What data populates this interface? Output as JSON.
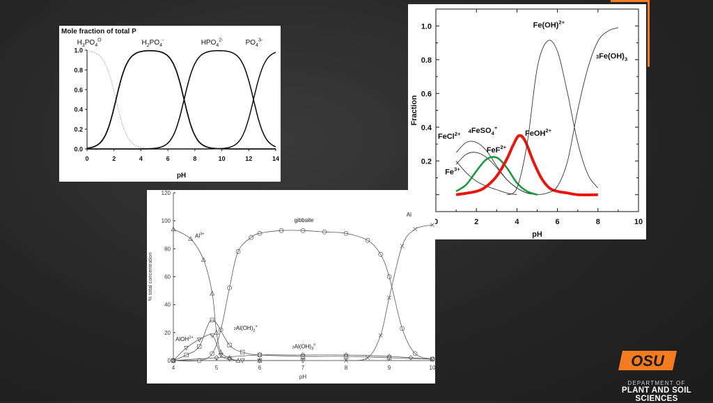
{
  "brand": {
    "accent_color": "#f47b20",
    "logo_text": "OSU",
    "department_line1": "DEPARTMENT OF",
    "department_line2": "PLANT AND SOIL SCIENCES"
  },
  "chart_data": [
    {
      "type": "line",
      "title": "Mole fraction of total P",
      "xlabel": "pH",
      "ylabel": "",
      "xlim": [
        0,
        14
      ],
      "ylim": [
        0,
        1
      ],
      "x_ticks": [
        "0",
        "2",
        "4",
        "6",
        "8",
        "10",
        "12",
        "14"
      ],
      "y_ticks": [
        "0.0",
        "0.2",
        "0.4",
        "0.6",
        "0.8",
        "1.0"
      ],
      "species_labels": [
        {
          "base": "H",
          "sub": "3",
          "mid": "PO",
          "sub2": "4",
          "sup": "O"
        },
        {
          "base": "H",
          "sub": "2",
          "mid": "PO",
          "sub2": "4",
          "sup": "-"
        },
        {
          "base": "",
          "sub": "",
          "mid": "HPO",
          "sub2": "4",
          "sup": "2-"
        },
        {
          "base": "",
          "sub": "",
          "mid": "PO",
          "sub2": "4",
          "sup": "3-"
        }
      ],
      "pKa": [
        2.15,
        7.2,
        12.35
      ],
      "x": [
        0,
        0.5,
        1,
        1.5,
        2,
        2.5,
        3,
        3.5,
        4,
        4.5,
        5,
        5.5,
        6,
        6.5,
        7,
        7.5,
        8,
        8.5,
        9,
        9.5,
        10,
        10.5,
        11,
        11.5,
        12,
        12.5,
        13,
        13.5,
        14
      ],
      "series": [
        {
          "values": [
            0.99,
            0.98,
            0.93,
            0.8,
            0.59,
            0.31,
            0.12,
            0.04,
            0.01,
            0.0,
            0.0,
            0.0,
            0.0,
            0.0,
            0.0,
            0.0,
            0.0,
            0.0,
            0.0,
            0.0,
            0.0,
            0.0,
            0.0,
            0.0,
            0.0,
            0.0,
            0.0,
            0.0,
            0.0
          ]
        },
        {
          "values": [
            0.01,
            0.02,
            0.07,
            0.2,
            0.41,
            0.69,
            0.88,
            0.96,
            0.98,
            0.99,
            0.99,
            0.98,
            0.94,
            0.83,
            0.61,
            0.33,
            0.14,
            0.05,
            0.02,
            0.0,
            0.0,
            0.0,
            0.0,
            0.0,
            0.0,
            0.0,
            0.0,
            0.0,
            0.0
          ]
        },
        {
          "values": [
            0.0,
            0.0,
            0.0,
            0.0,
            0.0,
            0.0,
            0.0,
            0.0,
            0.0,
            0.01,
            0.01,
            0.02,
            0.06,
            0.17,
            0.39,
            0.67,
            0.86,
            0.95,
            0.98,
            0.99,
            0.99,
            0.98,
            0.95,
            0.87,
            0.59,
            0.44,
            0.19,
            0.07,
            0.02
          ]
        },
        {
          "values": [
            0.0,
            0.0,
            0.0,
            0.0,
            0.0,
            0.0,
            0.0,
            0.0,
            0.0,
            0.0,
            0.0,
            0.0,
            0.0,
            0.0,
            0.0,
            0.0,
            0.0,
            0.0,
            0.0,
            0.0,
            0.0,
            0.01,
            0.04,
            0.12,
            0.41,
            0.56,
            0.81,
            0.93,
            0.98
          ]
        }
      ]
    },
    {
      "type": "line",
      "title": "",
      "xlabel": "pH",
      "ylabel": "Fraction",
      "xlim": [
        0,
        10
      ],
      "ylim": [
        -0.1,
        1.1
      ],
      "x_ticks": [
        "0",
        "2",
        "4",
        "6",
        "8",
        "10"
      ],
      "y_ticks": [
        "0.0",
        "0.2",
        "0.4",
        "0.6",
        "0.8",
        "1.0"
      ],
      "labels": {
        "fe3": {
          "text": "Fe",
          "sup": "3+"
        },
        "fecl": {
          "text": "FeCl",
          "sup": "2+"
        },
        "feso4": {
          "text": "FeSO",
          "sub": "4",
          "sup": "+"
        },
        "fef": {
          "text": "FeF",
          "sup": "2+"
        },
        "feoh": {
          "text": "FeOH",
          "sup": "2+"
        },
        "feoh2": {
          "text": "Fe(OH)",
          "sup": "2+"
        },
        "feoh3": {
          "text": "Fe(OH)",
          "sub": "3"
        }
      },
      "series": [
        {
          "color": "#333333",
          "x": [
            1,
            1.5,
            2,
            2.5,
            3,
            3.5,
            4
          ],
          "values": [
            0.2,
            0.13,
            0.08,
            0.05,
            0.03,
            0.01,
            0.0
          ]
        },
        {
          "color": "#333333",
          "x": [
            1,
            1.5,
            2,
            2.5,
            3,
            3.5,
            4,
            4.5,
            5
          ],
          "values": [
            0.25,
            0.31,
            0.31,
            0.26,
            0.17,
            0.09,
            0.04,
            0.01,
            0.0
          ]
        },
        {
          "color": "#333333",
          "x": [
            1,
            1.5,
            2,
            2.5,
            3,
            3.5,
            4,
            4.5,
            5
          ],
          "values": [
            0.18,
            0.24,
            0.25,
            0.22,
            0.16,
            0.09,
            0.04,
            0.01,
            0.0
          ]
        },
        {
          "color": "#1a9a3a",
          "x": [
            1,
            1.5,
            2,
            2.5,
            3,
            3.5,
            4,
            4.5,
            5
          ],
          "values": [
            0.02,
            0.06,
            0.14,
            0.21,
            0.22,
            0.16,
            0.07,
            0.02,
            0.0
          ]
        },
        {
          "color": "#e8160c",
          "x": [
            1,
            2,
            2.5,
            3,
            3.5,
            3.8,
            4.1,
            4.4,
            4.8,
            5.2,
            5.6,
            6,
            6.5,
            7,
            8
          ],
          "values": [
            0.0,
            0.02,
            0.05,
            0.11,
            0.21,
            0.29,
            0.35,
            0.32,
            0.2,
            0.1,
            0.04,
            0.02,
            0.01,
            0.0,
            0.0
          ]
        },
        {
          "color": "#333333",
          "x": [
            3.5,
            4,
            4.5,
            5,
            5.5,
            6,
            6.5,
            7,
            7.5,
            8
          ],
          "values": [
            0.0,
            0.04,
            0.3,
            0.75,
            0.91,
            0.85,
            0.6,
            0.31,
            0.12,
            0.04
          ]
        },
        {
          "color": "#333333",
          "x": [
            5,
            5.5,
            6,
            6.5,
            7,
            7.5,
            8,
            8.5,
            9
          ],
          "values": [
            0.0,
            0.01,
            0.05,
            0.2,
            0.5,
            0.75,
            0.91,
            0.97,
            0.99
          ]
        }
      ]
    },
    {
      "type": "line",
      "title": "",
      "xlabel": "pH",
      "ylabel": "% total concentration",
      "xlim": [
        4,
        10
      ],
      "ylim": [
        0,
        120
      ],
      "x_ticks": [
        "4",
        "5",
        "6",
        "7",
        "8",
        "9",
        "10"
      ],
      "y_ticks": [
        "0",
        "20",
        "40",
        "60",
        "80",
        "100",
        "120"
      ],
      "labels": {
        "al3": {
          "text": "Al",
          "sup": "3+"
        },
        "gibbsite": {
          "text": "gibbsite"
        },
        "aloh": {
          "text": "AlOH",
          "sup": "2+"
        },
        "aloh2": {
          "text": "Al(OH)",
          "sub": "2",
          "sup": "+"
        },
        "aloh3": {
          "text": "Al(OH)",
          "sub": "3",
          "sup": "o"
        },
        "al4": {
          "text": "Al"
        }
      },
      "series": [
        {
          "marker": "triangle",
          "x": [
            4,
            4.4,
            4.7,
            4.9,
            5.0,
            5.1,
            5.3,
            5.5,
            6
          ],
          "values": [
            94,
            87,
            72,
            48,
            20,
            6,
            2,
            0,
            0
          ]
        },
        {
          "marker": "circle",
          "x": [
            4,
            4.6,
            4.9,
            5.1,
            5.3,
            5.5,
            5.8,
            6,
            6.5,
            7,
            7.5,
            8,
            8.5,
            8.8,
            9,
            9.3,
            9.6,
            10
          ],
          "values": [
            0,
            0,
            5,
            22,
            52,
            78,
            88,
            91,
            93,
            93,
            92,
            91,
            86,
            76,
            60,
            23,
            5,
            1
          ]
        },
        {
          "marker": "triangle-down",
          "x": [
            4,
            4.3,
            4.6,
            4.9,
            5.1,
            5.3,
            5.6,
            6,
            7
          ],
          "values": [
            0,
            9,
            15,
            18,
            4,
            1,
            0,
            0,
            0
          ]
        },
        {
          "marker": "square",
          "x": [
            4,
            4.3,
            4.6,
            4.9,
            5.3,
            5.6,
            6,
            7,
            8,
            9,
            10
          ],
          "values": [
            0,
            4,
            10,
            29,
            11,
            6,
            4,
            3,
            3,
            2,
            1
          ]
        },
        {
          "marker": "diamond",
          "x": [
            4,
            5,
            6,
            7,
            8,
            9,
            9.5,
            10
          ],
          "values": [
            0,
            2,
            4,
            4,
            4,
            3,
            2,
            1
          ]
        },
        {
          "marker": "cross",
          "x": [
            8,
            8.5,
            8.8,
            9,
            9.3,
            9.6,
            10
          ],
          "values": [
            0,
            2,
            18,
            45,
            82,
            94,
            97
          ]
        }
      ]
    }
  ]
}
